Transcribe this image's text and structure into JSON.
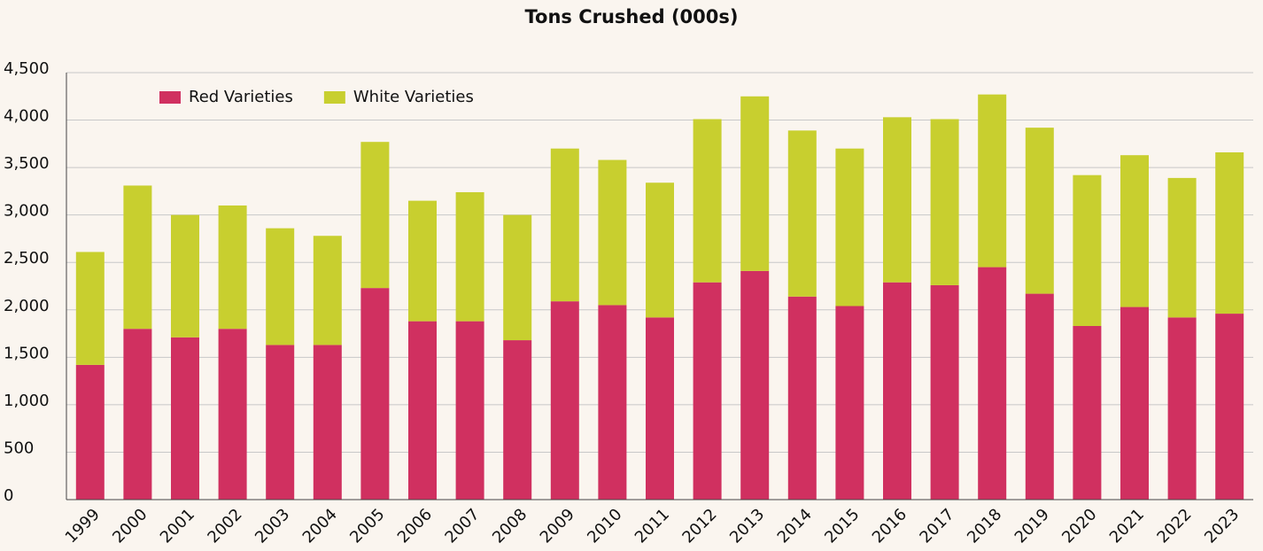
{
  "chart_data": {
    "type": "bar",
    "stacked": true,
    "title": "Tons Crushed (000s)",
    "categories": [
      "1999",
      "2000",
      "2001",
      "2002",
      "2003",
      "2004",
      "2005",
      "2006",
      "2007",
      "2008",
      "2009",
      "2010",
      "2011",
      "2012",
      "2013",
      "2014",
      "2015",
      "2016",
      "2017",
      "2018",
      "2019",
      "2020",
      "2021",
      "2022",
      "2023"
    ],
    "series": [
      {
        "name": "Red Varieties",
        "color": "#d03060",
        "values": [
          1420,
          1800,
          1710,
          1800,
          1630,
          1630,
          2230,
          1880,
          1880,
          1680,
          2090,
          2050,
          1920,
          2290,
          2410,
          2140,
          2040,
          2290,
          2260,
          2450,
          2170,
          1830,
          2030,
          1920,
          1960
        ]
      },
      {
        "name": "White Varieties",
        "color": "#c8cf2f",
        "values": [
          1190,
          1510,
          1290,
          1300,
          1230,
          1150,
          1540,
          1270,
          1360,
          1320,
          1610,
          1530,
          1420,
          1720,
          1840,
          1750,
          1660,
          1740,
          1750,
          1820,
          1750,
          1590,
          1600,
          1470,
          1700
        ]
      }
    ],
    "ylim": [
      0,
      4500
    ],
    "yticks": [
      0,
      500,
      {
        "value": 1000,
        "label": "1,000"
      },
      {
        "value": 1500,
        "label": "1,500"
      },
      {
        "value": 2000,
        "label": "2,000"
      },
      {
        "value": 2500,
        "label": "2,500"
      },
      {
        "value": 3000,
        "label": "3,000"
      },
      {
        "value": 3500,
        "label": "3,500"
      },
      {
        "value": 4000,
        "label": "4,000"
      },
      {
        "value": 4500,
        "label": "4,500"
      }
    ],
    "grid": true,
    "legend": "top-left"
  }
}
